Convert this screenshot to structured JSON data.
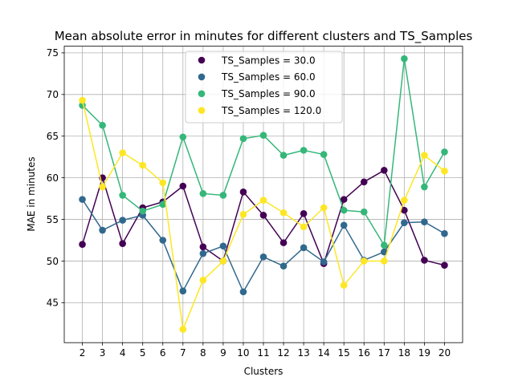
{
  "chart_data": {
    "type": "line",
    "title": "Mean absolute error in minutes for different clusters and TS_Samples",
    "xlabel": "Clusters",
    "ylabel": "MAE in minutes",
    "x": [
      2,
      3,
      4,
      5,
      6,
      7,
      8,
      9,
      10,
      11,
      12,
      13,
      14,
      15,
      16,
      17,
      18,
      19,
      20
    ],
    "xlim": [
      1.1,
      20.9
    ],
    "ylim": [
      40.2,
      75.8
    ],
    "yticks": [
      45,
      50,
      55,
      60,
      65,
      70,
      75
    ],
    "grid": true,
    "legend_position": "top-center",
    "series": [
      {
        "name": "TS_Samples = 30.0",
        "color": "#440154",
        "values": [
          52.0,
          60.0,
          52.1,
          56.4,
          57.1,
          59.0,
          51.7,
          50.0,
          58.3,
          55.5,
          52.2,
          55.7,
          49.7,
          57.4,
          59.5,
          60.9,
          56.1,
          50.1,
          49.5
        ]
      },
      {
        "name": "TS_Samples = 60.0",
        "color": "#31688e",
        "values": [
          57.4,
          53.7,
          54.9,
          55.5,
          52.5,
          46.4,
          50.9,
          51.8,
          46.3,
          50.5,
          49.4,
          51.6,
          49.9,
          54.3,
          50.1,
          51.1,
          54.6,
          54.7,
          53.3
        ]
      },
      {
        "name": "TS_Samples = 90.0",
        "color": "#35b779",
        "values": [
          68.7,
          66.3,
          57.9,
          56.0,
          56.8,
          64.9,
          58.1,
          57.9,
          64.7,
          65.1,
          62.7,
          63.3,
          62.8,
          56.1,
          55.9,
          51.9,
          74.3,
          58.9,
          63.1
        ]
      },
      {
        "name": "TS_Samples = 120.0",
        "color": "#fde725",
        "values": [
          69.3,
          58.9,
          63.0,
          61.5,
          59.4,
          41.8,
          47.7,
          50.0,
          55.6,
          57.3,
          55.8,
          54.1,
          56.4,
          47.1,
          50.0,
          50.0,
          57.3,
          62.7,
          60.8
        ]
      }
    ]
  }
}
